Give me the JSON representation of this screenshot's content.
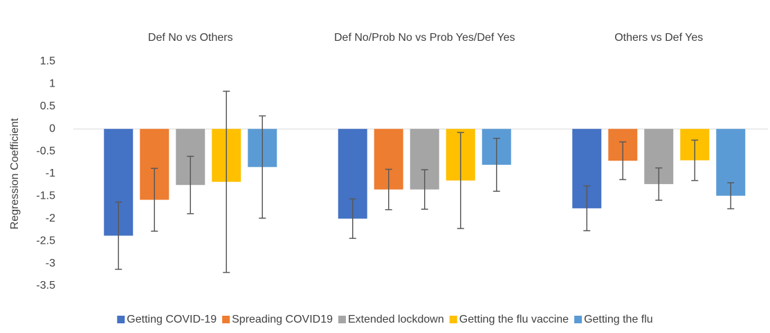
{
  "chart_data": {
    "type": "bar",
    "categories": [
      "Def No vs Others",
      "Def No/Prob No vs Prob Yes/Def Yes",
      "Others vs Def Yes"
    ],
    "y_label": "Regression Coefficient",
    "series": [
      {
        "name": "Getting COVID-19",
        "color": "#4472c4",
        "values": [
          -2.38,
          -2.0,
          -1.77
        ],
        "errors": [
          0.75,
          0.44,
          0.5
        ]
      },
      {
        "name": "Spreading COVID19",
        "color": "#ed7d31",
        "values": [
          -1.58,
          -1.35,
          -0.71
        ],
        "errors": [
          0.7,
          0.45,
          0.42
        ]
      },
      {
        "name": "Extended lockdown",
        "color": "#a5a5a5",
        "values": [
          -1.25,
          -1.35,
          -1.23
        ],
        "errors": [
          0.64,
          0.44,
          0.36
        ]
      },
      {
        "name": "Getting the flu vaccine",
        "color": "#ffc000",
        "values": [
          -1.18,
          -1.15,
          -0.7
        ],
        "errors": [
          2.02,
          1.07,
          0.45
        ]
      },
      {
        "name": "Getting the flu",
        "color": "#5b9bd5",
        "values": [
          -0.85,
          -0.8,
          -1.49
        ],
        "errors": [
          1.14,
          0.59,
          0.29
        ]
      }
    ],
    "ylim": [
      -3.5,
      1.5
    ],
    "yticks": [
      -3.5,
      -3,
      -2.5,
      -2,
      -1.5,
      -1,
      -0.5,
      0,
      0.5,
      1,
      1.5
    ],
    "legend": "bottom"
  }
}
